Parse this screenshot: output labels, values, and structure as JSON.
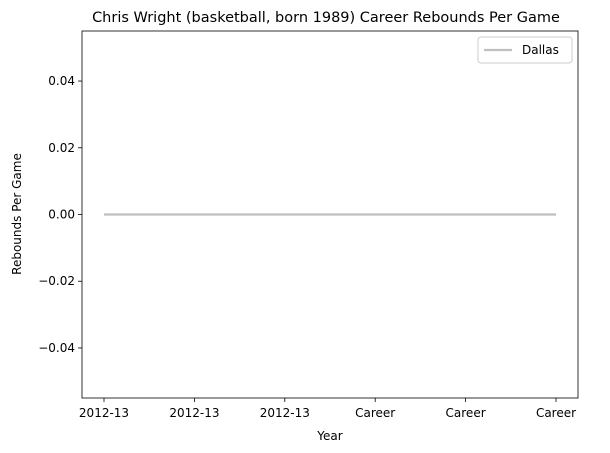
{
  "chart_data": {
    "type": "line",
    "title": "Chris Wright (basketball, born 1989) Career Rebounds Per Game",
    "xlabel": "Year",
    "ylabel": "Rebounds Per Game",
    "categories": [
      "2012-13",
      "2012-13",
      "2012-13",
      "Career",
      "Career",
      "Career"
    ],
    "series": [
      {
        "name": "Dallas",
        "values": [
          0,
          0,
          0,
          0,
          0,
          0
        ],
        "color": "#bfbfbf"
      }
    ],
    "ylim": [
      -0.055,
      0.055
    ],
    "yticks": [
      -0.04,
      -0.02,
      0.0,
      0.02,
      0.04
    ],
    "ytick_labels": [
      "−0.04",
      "−0.02",
      "0.00",
      "0.02",
      "0.04"
    ],
    "grid": false,
    "legend": "top-right"
  }
}
